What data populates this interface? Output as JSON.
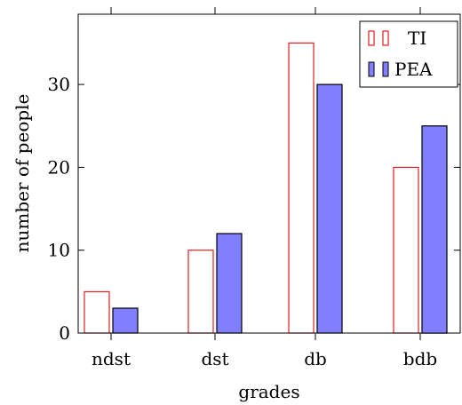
{
  "chart_data": {
    "type": "bar",
    "categories": [
      "ndst",
      "dst",
      "db",
      "bdb"
    ],
    "series": [
      {
        "name": "TI",
        "values": [
          5,
          10,
          35,
          20
        ],
        "fill": "#ffffff",
        "stroke": "#e02020"
      },
      {
        "name": "PEA",
        "values": [
          3,
          12,
          30,
          25
        ],
        "fill": "#7f7fff",
        "stroke": "#000000"
      }
    ],
    "xlabel": "grades",
    "ylabel": "number of people",
    "ylim": [
      0,
      38
    ],
    "yticks": [
      0,
      10,
      20,
      30
    ],
    "grid": false,
    "legend_position": "top-right"
  }
}
